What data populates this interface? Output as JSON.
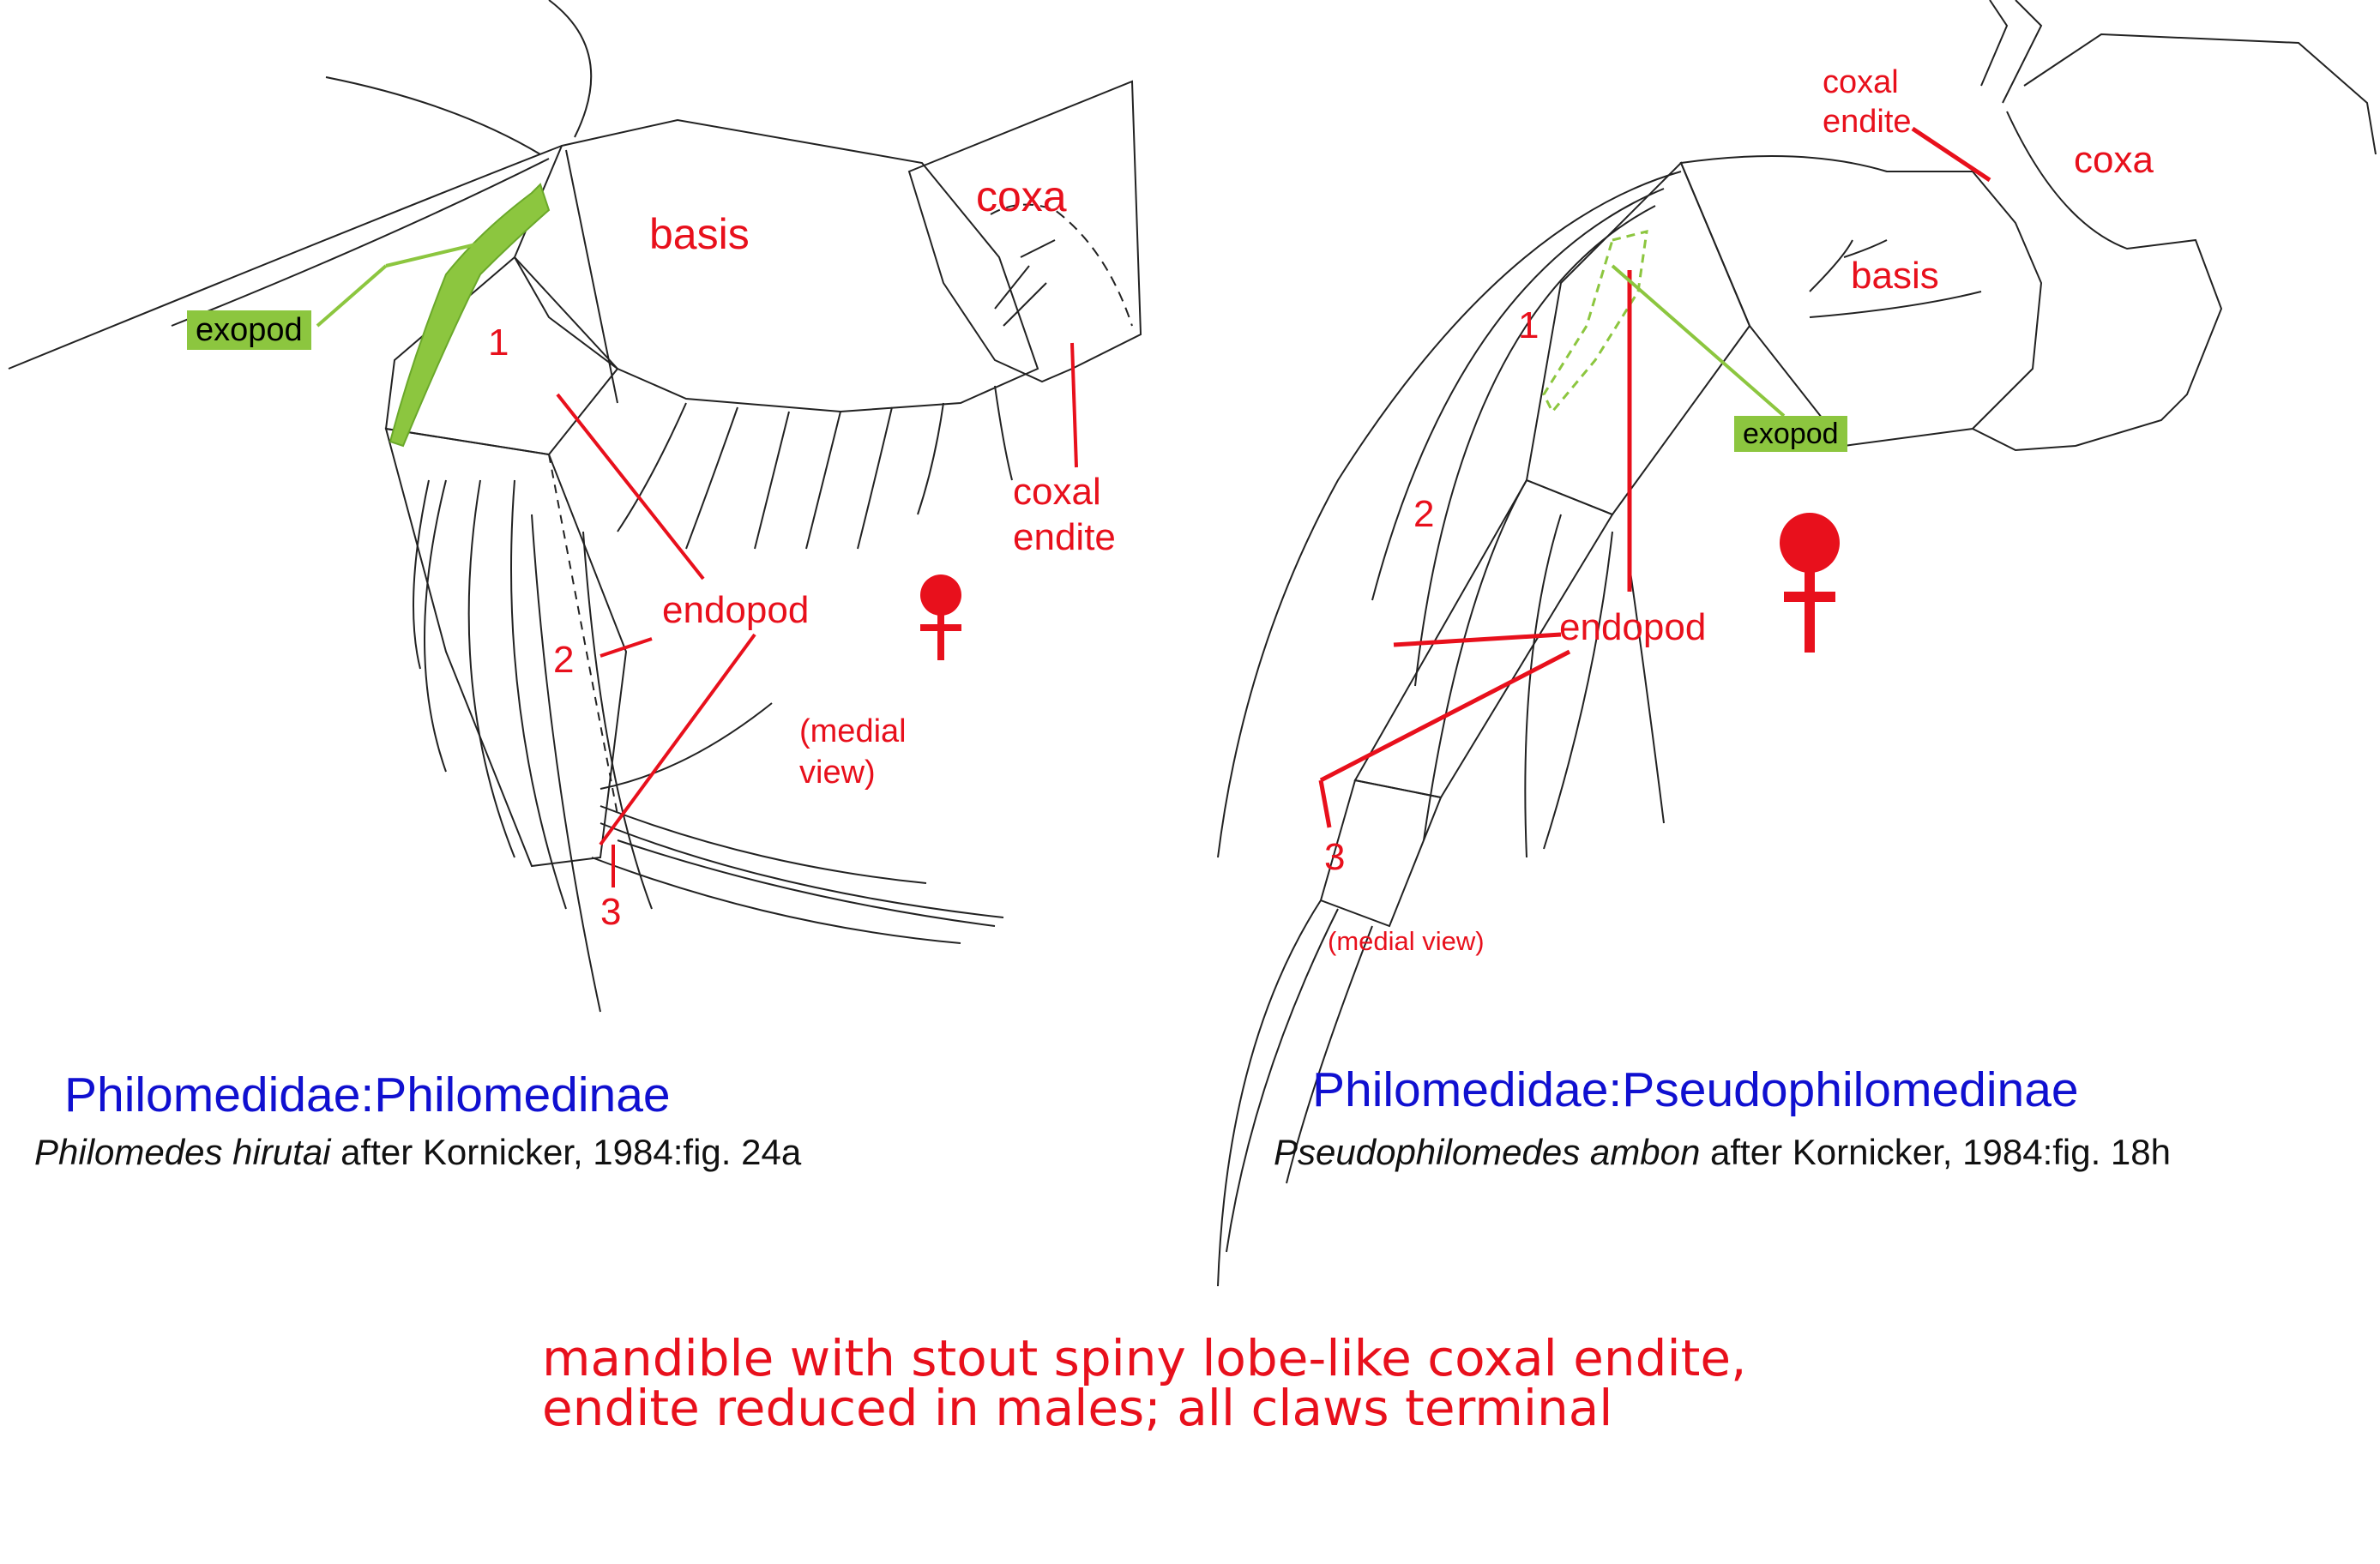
{
  "left_figure": {
    "labels": {
      "basis": "basis",
      "coxa": "coxa",
      "exopod": "exopod",
      "article_1": "1",
      "article_2": "2",
      "article_3": "3",
      "endopod": "endopod",
      "coxal_endite": "coxal\nendite",
      "medial_view": "(medial\nview)"
    },
    "title": "Philomedidae:Philomedinae",
    "citation_species": "Philomedes hirutai",
    "citation_rest": " after Kornicker, 1984:fig. 24a"
  },
  "right_figure": {
    "labels": {
      "coxal_endite": "coxal\nendite",
      "coxa": "coxa",
      "basis": "basis",
      "exopod": "exopod",
      "article_1": "1",
      "article_2": "2",
      "article_3": "3",
      "endopod": "endopod",
      "medial_view": "(medial view)"
    },
    "title": "Philomedidae:Pseudophilomedinae",
    "citation_species": "Pseudophilomedes ambon",
    "citation_rest": " after Kornicker, 1984:fig. 18h"
  },
  "caption": {
    "line1": "mandible with stout spiny lobe-like coxal endite,",
    "line2": "endite reduced in males; all claws terminal"
  },
  "colors": {
    "label_red": "#e8101c",
    "title_blue": "#1010d0",
    "exopod_green": "#8cc63f",
    "drawing": "#222222"
  }
}
